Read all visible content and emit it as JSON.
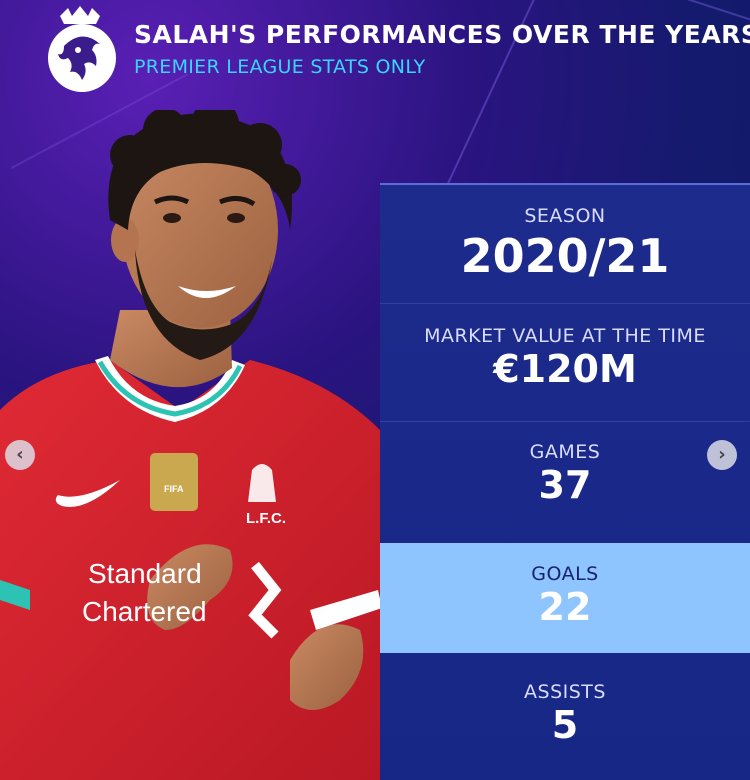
{
  "header": {
    "title": "SALAH'S PERFORMANCES OVER THE YEARS",
    "subtitle": "PREMIER LEAGUE STATS ONLY",
    "logo_icon": "premier-league-lion-logo"
  },
  "stats": [
    {
      "label": "SEASON",
      "value": "2020/21"
    },
    {
      "label": "MARKET VALUE AT THE TIME",
      "value": "€120M"
    },
    {
      "label": "GAMES",
      "value": "37"
    },
    {
      "label": "GOALS",
      "value": "22"
    },
    {
      "label": "ASSISTS",
      "value": "5"
    }
  ],
  "player": {
    "shirt_sponsor_line1": "Standard",
    "shirt_sponsor_line2": "Chartered",
    "crest_text": "L.F.C.",
    "badge_text": "FIFA"
  },
  "navigation": {
    "prev_icon": "chevron-left-icon",
    "next_icon": "chevron-right-icon",
    "prev_glyph": "‹",
    "next_glyph": "›"
  },
  "colors": {
    "accent": "#38d6ff",
    "panel": "#1d2b8c",
    "highlight": "#8ec5ff",
    "shirt": "#d6232f"
  }
}
